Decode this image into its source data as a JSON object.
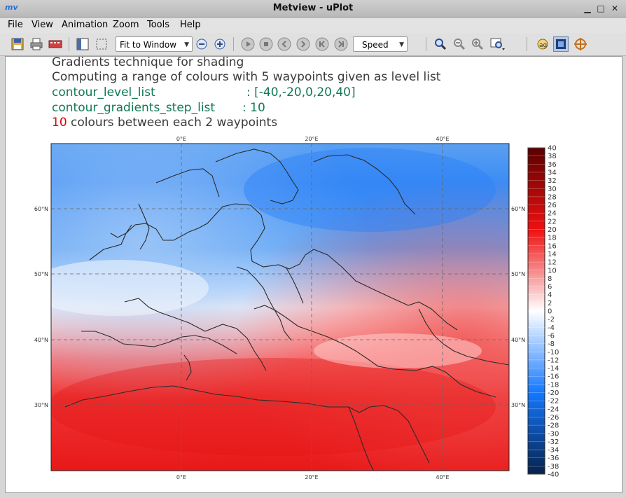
{
  "window": {
    "title": "Metview - uPlot",
    "logo_text": "mv"
  },
  "menu": {
    "items": [
      "File",
      "View",
      "Animation",
      "Zoom",
      "Tools",
      "Help"
    ]
  },
  "toolbar": {
    "zoom_mode": "Fit to Window",
    "speed": "Speed"
  },
  "plot_text": {
    "line1": "Gradients technique for shading",
    "line2": "Computing a range of colours with 5 waypoints given as level list",
    "line3_key": "contour_level_list",
    "line3_val": ": [-40,-20,0,20,40]",
    "line4_key": "contour_gradients_step_list",
    "line4_val": ": 10",
    "line5_num": "10",
    "line5_rest": " colours between each 2 waypoints"
  },
  "map": {
    "lon_labels": [
      "0°E",
      "20°E",
      "40°E"
    ],
    "lat_labels": [
      "60°N",
      "50°N",
      "40°N",
      "30°N"
    ]
  },
  "legend": {
    "levels": [
      40,
      38,
      36,
      34,
      32,
      30,
      28,
      26,
      24,
      22,
      20,
      18,
      16,
      14,
      12,
      10,
      8,
      6,
      4,
      2,
      0,
      -2,
      -4,
      -6,
      -8,
      -10,
      -12,
      -14,
      -16,
      -18,
      -20,
      -22,
      -24,
      -26,
      -28,
      -30,
      -32,
      -34,
      -36,
      -38,
      -40
    ]
  },
  "colors": {
    "deep_red": "#5a0000",
    "red": "#ee1010",
    "white": "#ffffff",
    "blue": "#1478ff",
    "deep_blue": "#06224a"
  }
}
